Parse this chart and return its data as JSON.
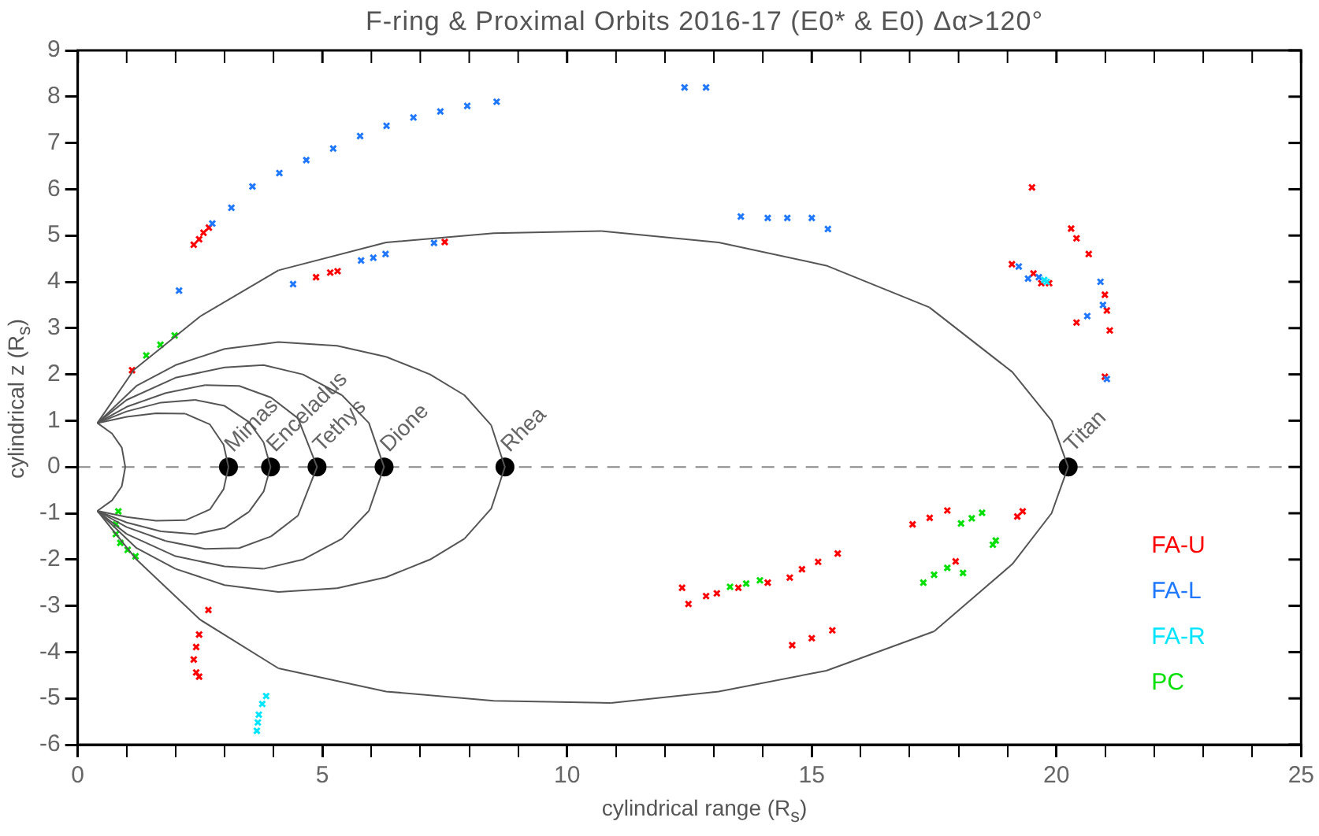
{
  "chart_data": {
    "type": "scatter",
    "title": "F-ring & Proximal Orbits 2016-17 (E0* & E0) Δα>120°",
    "xlabel": "cylindrical range (R$_{s}$)",
    "ylabel": "cylindrical z (R$_{s}$)",
    "xlim": [
      0,
      25
    ],
    "xticks": [
      0,
      {
        "value": 1,
        "label": null
      },
      {
        "value": 2,
        "label": null
      },
      {
        "value": 3,
        "label": null
      },
      {
        "value": 4,
        "label": null
      },
      5,
      {
        "value": 6,
        "label": null
      },
      {
        "value": 7,
        "label": null
      },
      {
        "value": 8,
        "label": null
      },
      {
        "value": 9,
        "label": null
      },
      10,
      {
        "value": 11,
        "label": null
      },
      {
        "value": 12,
        "label": null
      },
      {
        "value": 13,
        "label": null
      },
      {
        "value": 14,
        "label": null
      },
      15,
      {
        "value": 16,
        "label": null
      },
      {
        "value": 17,
        "label": null
      },
      {
        "value": 18,
        "label": null
      },
      {
        "value": 19,
        "label": null
      },
      20,
      {
        "value": 21,
        "label": null
      },
      {
        "value": 22,
        "label": null
      },
      {
        "value": 23,
        "label": null
      },
      {
        "value": 24,
        "label": null
      },
      25
    ],
    "ylim": [
      -6,
      9
    ],
    "yticks": [
      -6,
      -5,
      -4,
      -3,
      -2,
      -1,
      0,
      1,
      2,
      3,
      4,
      5,
      6,
      7,
      8,
      9
    ],
    "grid": false,
    "legend": "bottom right",
    "marker": "cross",
    "series": [
      {
        "name": "FA-U",
        "color": "#ff0000",
        "x": [
          2.37,
          2.48,
          2.57,
          2.68,
          1.11,
          4.87,
          5.16,
          5.31,
          7.5,
          19.5,
          20.3,
          20.41,
          20.66,
          20.99,
          21.03,
          21.09,
          19.09,
          19.53,
          19.69,
          19.85,
          20.41,
          20.99,
          17.06,
          17.41,
          17.77,
          19.2,
          19.31,
          17.94,
          14.1,
          14.55,
          14.8,
          15.13,
          15.53,
          13.5,
          12.35,
          12.48,
          12.84,
          13.06,
          14.6,
          15.0,
          15.42,
          2.67,
          2.48,
          2.42,
          2.37,
          2.42,
          2.48
        ],
        "values": [
          4.8,
          4.92,
          5.06,
          5.17,
          2.09,
          4.1,
          4.2,
          4.23,
          4.86,
          6.04,
          5.15,
          4.94,
          4.6,
          3.72,
          3.38,
          2.95,
          4.38,
          4.18,
          3.97,
          3.97,
          3.12,
          1.95,
          -1.24,
          -1.1,
          -0.94,
          -1.07,
          -0.96,
          -2.04,
          -2.5,
          -2.39,
          -2.21,
          -2.05,
          -1.87,
          -2.61,
          -2.61,
          -2.96,
          -2.79,
          -2.73,
          -3.85,
          -3.7,
          -3.53,
          -3.09,
          -3.62,
          -3.89,
          -4.16,
          -4.44,
          -4.53
        ]
      },
      {
        "name": "FA-L",
        "color": "#1f78ff",
        "x": [
          2.75,
          3.14,
          3.57,
          4.12,
          4.67,
          5.22,
          5.77,
          6.31,
          6.86,
          7.41,
          7.96,
          8.56,
          12.4,
          12.84,
          2.07,
          4.4,
          5.79,
          6.04,
          6.29,
          7.28,
          13.55,
          14.1,
          14.5,
          15.0,
          15.33,
          19.23,
          19.42,
          19.64,
          20.63,
          20.9,
          20.95,
          21.03
        ],
        "values": [
          5.26,
          5.6,
          6.06,
          6.35,
          6.63,
          6.88,
          7.15,
          7.37,
          7.55,
          7.68,
          7.8,
          7.89,
          8.2,
          8.2,
          3.81,
          3.95,
          4.46,
          4.52,
          4.6,
          4.84,
          5.41,
          5.38,
          5.38,
          5.38,
          5.14,
          4.33,
          4.07,
          4.1,
          3.26,
          4.0,
          3.5,
          1.9
        ]
      },
      {
        "name": "FA-R",
        "color": "#00e5ff",
        "x": [
          3.66,
          3.68,
          3.7,
          3.77,
          3.85,
          19.75,
          19.8
        ],
        "values": [
          -5.7,
          -5.52,
          -5.35,
          -5.12,
          -4.95,
          4.04,
          4.0
        ]
      },
      {
        "name": "PC",
        "color": "#00e000",
        "x": [
          1.4,
          1.69,
          1.98,
          0.83,
          0.78,
          0.78,
          0.87,
          1.02,
          1.18,
          13.33,
          13.66,
          13.94,
          18.05,
          18.27,
          18.48,
          18.7,
          18.76,
          17.28,
          17.5,
          17.77,
          18.09
        ],
        "values": [
          2.41,
          2.64,
          2.84,
          -0.96,
          -1.24,
          -1.45,
          -1.64,
          -1.79,
          -1.93,
          -2.59,
          -2.52,
          -2.45,
          -1.22,
          -1.11,
          -0.99,
          -1.68,
          -1.59,
          -2.5,
          -2.33,
          -2.18,
          -2.29
        ]
      },
      {
        "color": "#000000",
        "marker": "circle",
        "x": [
          3.08,
          3.94,
          4.89,
          6.26,
          8.73,
          20.24
        ],
        "values": [
          0,
          0,
          0,
          0,
          0,
          0
        ]
      }
    ],
    "ref_lines": [
      {
        "axis": "y",
        "value": 0,
        "color": "#888888",
        "line_style": "dashed"
      }
    ],
    "annotations": [
      {
        "text": "Mimas",
        "x": 3.08,
        "y": 0
      },
      {
        "text": "Enceladus",
        "x": 3.94,
        "y": 0
      },
      {
        "text": "Tethys",
        "x": 4.89,
        "y": 0
      },
      {
        "text": "Dione",
        "x": 6.26,
        "y": 0
      },
      {
        "text": "Rhea",
        "x": 8.73,
        "y": 0
      },
      {
        "text": "Titan",
        "x": 20.24,
        "y": 0
      }
    ]
  }
}
